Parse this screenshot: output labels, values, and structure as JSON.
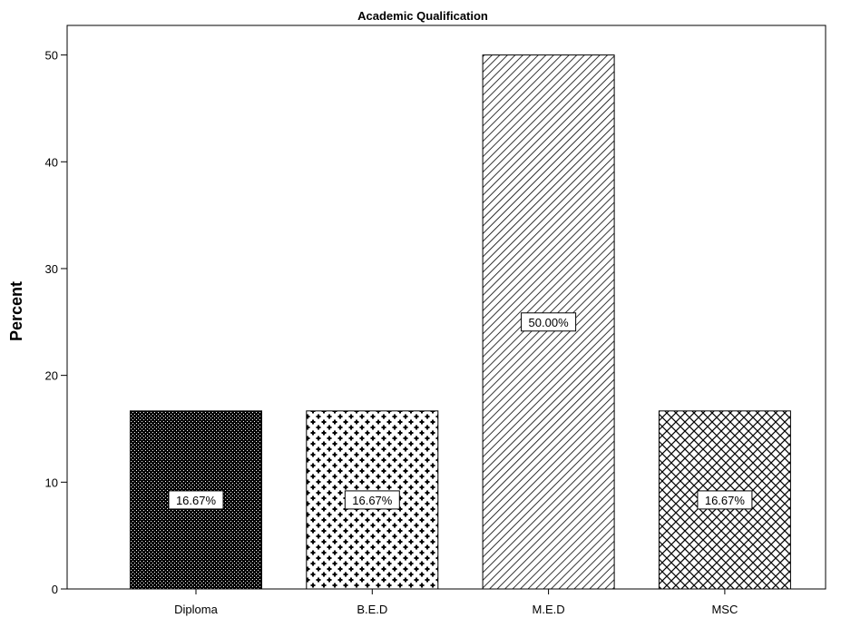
{
  "chart_data": {
    "type": "bar",
    "title": "Academic Qualification",
    "xlabel": "",
    "ylabel": "Percent",
    "ylim": [
      0,
      50
    ],
    "yticks": [
      0,
      10,
      20,
      30,
      40,
      50
    ],
    "categories": [
      "Diploma",
      "B.E.D",
      "M.E.D",
      "MSC"
    ],
    "values": [
      16.67,
      16.67,
      50.0,
      16.67
    ],
    "data_labels": [
      "16.67%",
      "16.67%",
      "50.00%",
      "16.67%"
    ],
    "patterns": [
      "dense-dots",
      "crosses",
      "diagonal-lines",
      "crosshatch"
    ],
    "grid": false,
    "legend": "none"
  }
}
